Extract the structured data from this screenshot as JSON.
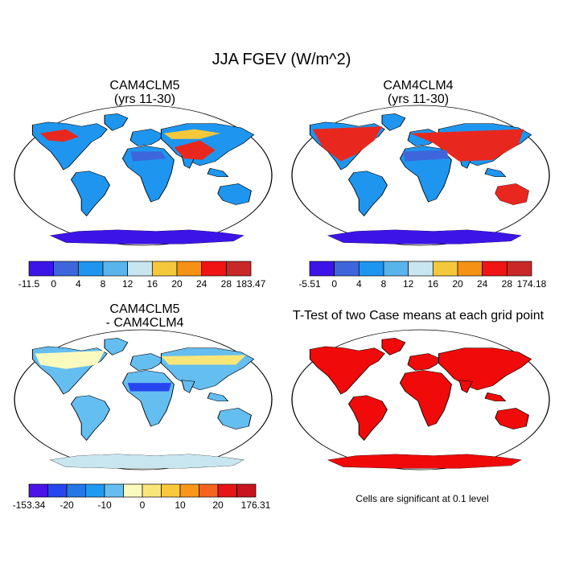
{
  "figure": {
    "title": "JJA FGEV (W/m^2)"
  },
  "panels": [
    {
      "id": "cam4clm5",
      "title_line1": "CAM4CLM5",
      "title_line2": "(yrs 11-30)",
      "palette": "main"
    },
    {
      "id": "cam4clm4",
      "title_line1": "CAM4CLM4",
      "title_line2": "(yrs 11-30)",
      "palette": "main"
    },
    {
      "id": "difference",
      "title_line1": "CAM4CLM5",
      "title_line2": "- CAM4CLM4",
      "palette": "diff"
    },
    {
      "id": "ttest",
      "title_line1": "T-Test of two Case means at each grid point",
      "title_line2": "",
      "palette": "sig",
      "note": "Cells are significant at 0.1 level"
    }
  ],
  "colorbars": [
    {
      "id": "colorbar-cam4clm5",
      "colors": [
        "#3c14e8",
        "#3d66dc",
        "#1e96f0",
        "#5ab4ec",
        "#c8e6f0",
        "#f5c83c",
        "#f59114",
        "#f01414",
        "#c82828"
      ],
      "labels": [
        "-11.5",
        "0",
        "4",
        "8",
        "12",
        "16",
        "20",
        "24",
        "28",
        "183.47"
      ]
    },
    {
      "id": "colorbar-cam4clm4",
      "colors": [
        "#3c14e8",
        "#3d66dc",
        "#1e96f0",
        "#5ab4ec",
        "#c8e6f0",
        "#f5c83c",
        "#f59114",
        "#f01414",
        "#c82828"
      ],
      "labels": [
        "-5.51",
        "0",
        "4",
        "8",
        "12",
        "16",
        "20",
        "24",
        "28",
        "174.18"
      ]
    },
    {
      "id": "colorbar-difference",
      "colors": [
        "#4b14e6",
        "#2846f0",
        "#2378e6",
        "#1e9bf0",
        "#64bef0",
        "#fafabe",
        "#fae678",
        "#fac83c",
        "#fa9619",
        "#f5641e",
        "#e61414",
        "#c8141e"
      ],
      "labels": [
        "-153.34",
        "",
        "-20",
        "",
        "-10",
        "",
        "0",
        "",
        "10",
        "",
        "20",
        "",
        "176.31"
      ],
      "shown_labels": [
        "-153.34",
        "-20",
        "-10",
        "0",
        "10",
        "20",
        "176.31"
      ]
    }
  ],
  "palettes": {
    "main": {
      "ocean": "#ffffff",
      "land": "#1e96f0",
      "hot": "#e8281e",
      "warm": "#f5c83c",
      "cool": "#3d66dc",
      "antarctica": "#3c14e8"
    },
    "diff": {
      "ocean": "#ffffff",
      "land": "#64bef0",
      "pale": "#fafabe",
      "yellow": "#fae678",
      "deep": "#2846f0",
      "antarctica": "#c8e6f0"
    },
    "sig": {
      "ocean": "#ffffff",
      "land": "#f00a0a",
      "antarctica": "#f00a0a"
    }
  }
}
